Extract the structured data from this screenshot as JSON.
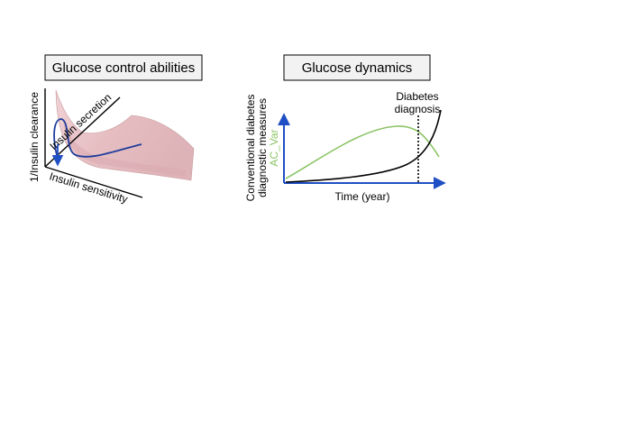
{
  "left_panel": {
    "title": "Glucose control abilities",
    "axis_vertical": "1/Insulin clearance",
    "axis_diagonal": "Insulin secretion",
    "axis_horizontal": "Insulin sensitivity",
    "surface_color": "#e8c1c4",
    "surface_edge_color": "#c89a9e",
    "trajectory_color": "#1f3d9c",
    "arrow_color": "#1f4fc4"
  },
  "right_panel": {
    "title": "Glucose dynamics",
    "ylabel_line1": "Conventional diabetes",
    "ylabel_line2": "diagnostic measures",
    "ylabel_series": "AC_Var",
    "xlabel": "Time (year)",
    "annotation_line1": "Diabetes",
    "annotation_line2": "diagnosis",
    "axis_color": "#1f4fc4",
    "ac_var_color": "#8cc466",
    "conventional_color": "#000000"
  }
}
